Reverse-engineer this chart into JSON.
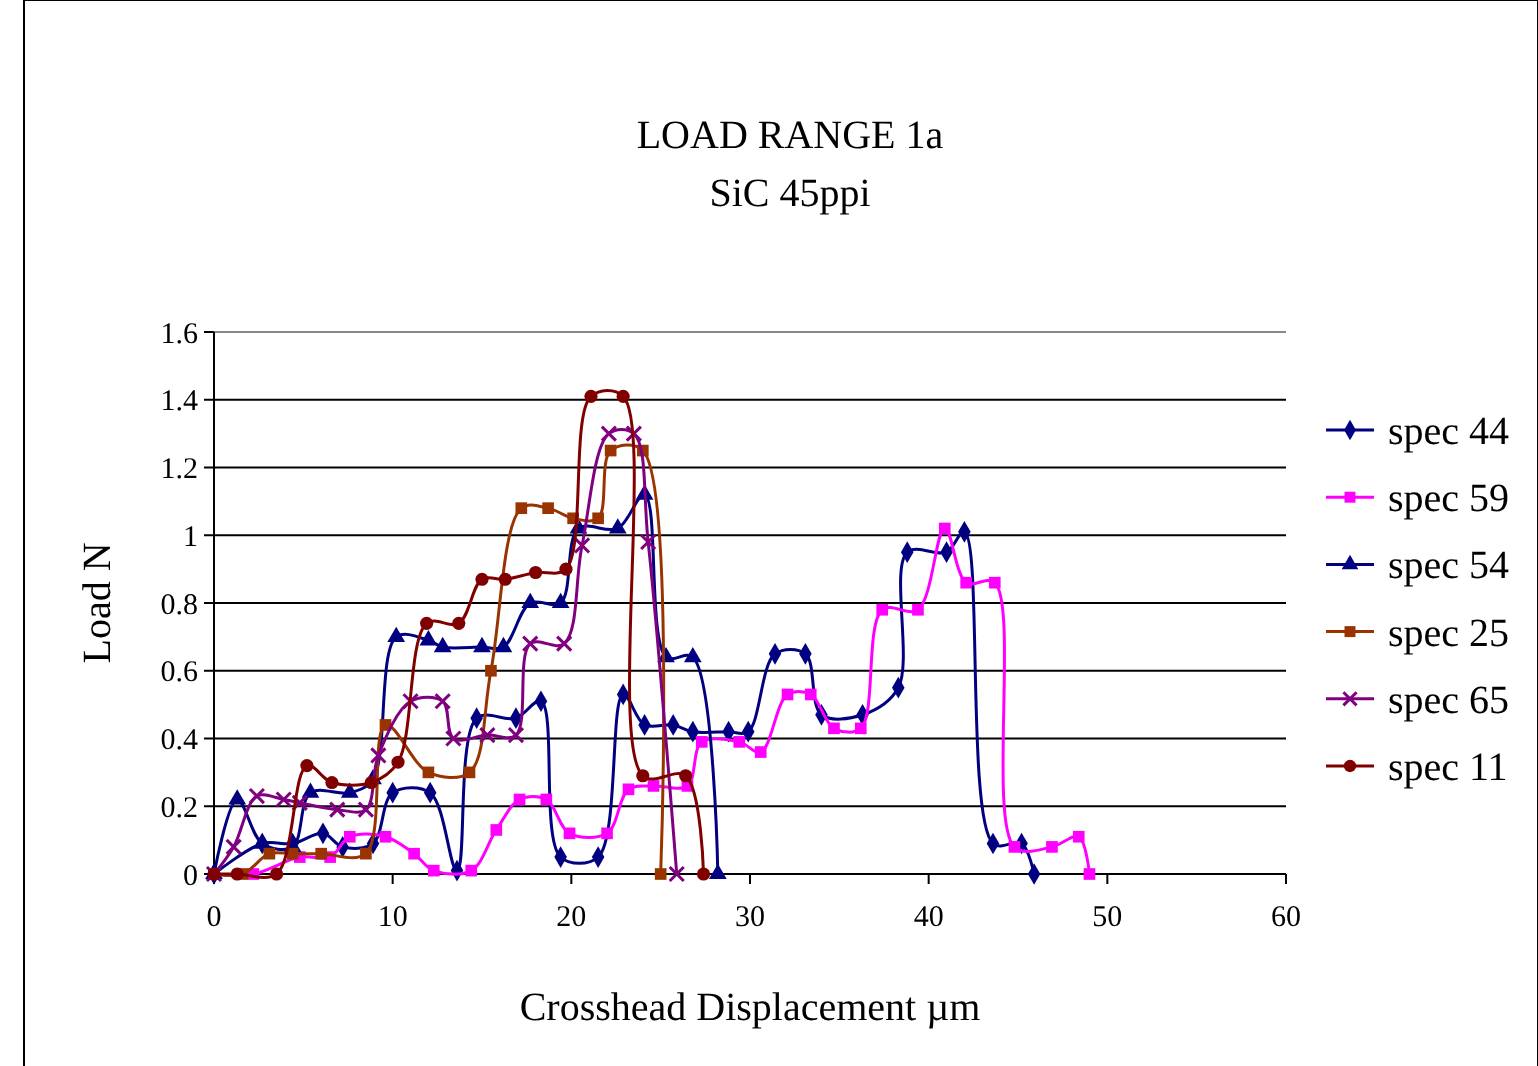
{
  "chart_data": {
    "type": "line",
    "title": "LOAD RANGE 1a",
    "subtitle": "SiC 45ppi",
    "xlabel": "Crosshead Displacement µm",
    "ylabel": "Load N",
    "xlim": [
      0,
      60
    ],
    "xticks": [
      0,
      10,
      20,
      30,
      40,
      50,
      60
    ],
    "ylim": [
      0,
      1.6
    ],
    "yticks": [
      0,
      0.2,
      0.4,
      0.6,
      0.8,
      1,
      1.2,
      1.4,
      1.6
    ],
    "grid": "y",
    "legend": "right",
    "line_style": "solid",
    "series": [
      {
        "name": "spec 44",
        "color": "#000080",
        "marker": "diamond",
        "x": [
          0,
          2.7,
          4.4,
          6.1,
          7.2,
          8.9,
          10.0,
          12.1,
          13.6,
          14.7,
          16.9,
          18.3,
          19.4,
          21.5,
          22.9,
          24.1,
          25.7,
          26.8,
          28.8,
          29.9,
          31.4,
          33.1,
          34.0,
          36.3,
          38.3,
          38.8,
          41.0,
          42.0,
          43.6,
          45.2,
          45.9
        ],
        "values": [
          0,
          0.09,
          0.09,
          0.12,
          0.08,
          0.09,
          0.24,
          0.24,
          0.01,
          0.46,
          0.46,
          0.51,
          0.05,
          0.05,
          0.53,
          0.44,
          0.44,
          0.42,
          0.42,
          0.42,
          0.65,
          0.65,
          0.47,
          0.47,
          0.55,
          0.95,
          0.95,
          1.01,
          0.09,
          0.09,
          0
        ]
      },
      {
        "name": "spec 59",
        "color": "#ff00ff",
        "marker": "square",
        "x": [
          0,
          2.2,
          4.8,
          6.5,
          7.6,
          9.6,
          11.2,
          12.3,
          14.4,
          15.8,
          17.1,
          18.6,
          19.9,
          22.0,
          23.2,
          24.6,
          26.5,
          27.3,
          29.4,
          30.6,
          32.1,
          33.4,
          34.7,
          36.2,
          37.4,
          39.4,
          40.9,
          42.1,
          43.7,
          44.8,
          46.9,
          48.4,
          49.0
        ],
        "values": [
          0,
          0,
          0.05,
          0.05,
          0.11,
          0.11,
          0.06,
          0.01,
          0.01,
          0.13,
          0.22,
          0.22,
          0.12,
          0.12,
          0.25,
          0.26,
          0.26,
          0.39,
          0.39,
          0.36,
          0.53,
          0.53,
          0.43,
          0.43,
          0.78,
          0.78,
          1.02,
          0.86,
          0.86,
          0.08,
          0.08,
          0.11,
          0
        ]
      },
      {
        "name": "spec 54",
        "color": "#000080",
        "marker": "triangle",
        "x": [
          0,
          1.3,
          2.7,
          4.4,
          5.4,
          7.6,
          8.9,
          10.2,
          12.0,
          12.8,
          15.0,
          16.2,
          17.7,
          19.4,
          20.4,
          22.6,
          24.1,
          25.3,
          26.8,
          28.2
        ],
        "values": [
          0,
          0.22,
          0.09,
          0.08,
          0.24,
          0.24,
          0.28,
          0.7,
          0.69,
          0.67,
          0.67,
          0.67,
          0.8,
          0.8,
          1.02,
          1.02,
          1.12,
          0.64,
          0.64,
          0
        ]
      },
      {
        "name": "spec 25",
        "color": "#993300",
        "marker": "square",
        "x": [
          0,
          1.6,
          3.1,
          4.4,
          6.0,
          8.5,
          9.6,
          12.0,
          14.3,
          15.5,
          17.2,
          18.7,
          20.1,
          21.5,
          22.2,
          24.0,
          25.0
        ],
        "values": [
          0,
          0,
          0.06,
          0.06,
          0.06,
          0.06,
          0.44,
          0.3,
          0.3,
          0.6,
          1.08,
          1.08,
          1.05,
          1.05,
          1.25,
          1.25,
          0
        ]
      },
      {
        "name": "spec 65",
        "color": "#800080",
        "marker": "cross",
        "x": [
          0,
          1.1,
          2.4,
          3.9,
          4.8,
          6.9,
          8.5,
          9.2,
          11.0,
          12.8,
          13.4,
          15.3,
          16.9,
          17.7,
          19.6,
          20.6,
          22.1,
          23.5,
          24.3,
          25.9
        ],
        "values": [
          0,
          0.08,
          0.23,
          0.22,
          0.21,
          0.19,
          0.19,
          0.35,
          0.51,
          0.51,
          0.4,
          0.41,
          0.41,
          0.68,
          0.68,
          0.97,
          1.3,
          1.3,
          0.98,
          0
        ]
      },
      {
        "name": "spec 11",
        "color": "#800000",
        "marker": "circle",
        "x": [
          0,
          1.3,
          3.5,
          5.2,
          6.6,
          8.8,
          10.3,
          11.9,
          13.7,
          15.0,
          16.3,
          18.0,
          19.7,
          21.1,
          22.9,
          24.0,
          26.4,
          27.4
        ],
        "values": [
          0,
          0,
          0,
          0.32,
          0.27,
          0.27,
          0.33,
          0.74,
          0.74,
          0.87,
          0.87,
          0.89,
          0.9,
          1.41,
          1.41,
          0.29,
          0.29,
          0
        ]
      }
    ]
  }
}
